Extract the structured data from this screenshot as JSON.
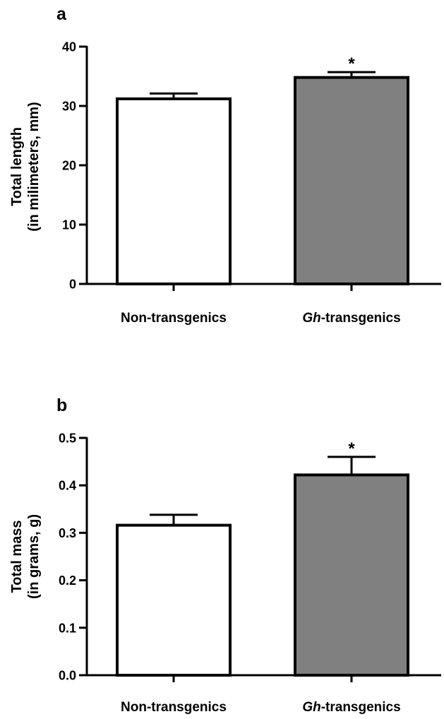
{
  "chart_data": [
    {
      "panel": "a",
      "type": "bar",
      "categories": [
        {
          "prefix": "Non-transgenics",
          "italic": "",
          "rest": ""
        },
        {
          "prefix": "",
          "italic": "Gh",
          "rest": "-transgenics"
        }
      ],
      "values": [
        31.2,
        34.8
      ],
      "errors": [
        0.9,
        0.9
      ],
      "bar_colors": [
        "#ffffff",
        "#808080"
      ],
      "significance": [
        "",
        "*"
      ],
      "ylabel_lines": [
        "Total length",
        "(in milimeters, mm)"
      ],
      "ylim": [
        0,
        40
      ],
      "yticks": [
        0,
        10,
        20,
        30,
        40
      ],
      "ytick_labels": [
        "0",
        "10",
        "20",
        "30",
        "40"
      ]
    },
    {
      "panel": "b",
      "type": "bar",
      "categories": [
        {
          "prefix": "Non-transgenics",
          "italic": "",
          "rest": ""
        },
        {
          "prefix": "",
          "italic": "Gh",
          "rest": "-transgenics"
        }
      ],
      "values": [
        0.316,
        0.422
      ],
      "errors": [
        0.022,
        0.038
      ],
      "bar_colors": [
        "#ffffff",
        "#808080"
      ],
      "significance": [
        "",
        "*"
      ],
      "ylabel_lines": [
        "Total mass",
        "(in grams, g)"
      ],
      "ylim": [
        0,
        0.5
      ],
      "yticks": [
        0,
        0.1,
        0.2,
        0.3,
        0.4,
        0.5
      ],
      "ytick_labels": [
        "0.0",
        "0.1",
        "0.2",
        "0.3",
        "0.4",
        "0.5"
      ]
    }
  ]
}
